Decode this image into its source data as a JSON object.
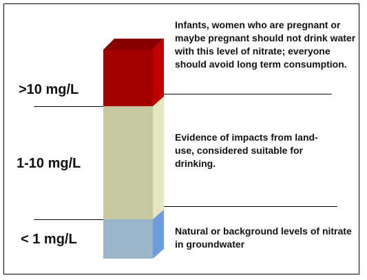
{
  "levels": [
    {
      "label": ">10 mg/L",
      "description": "Infants, women who are pregnant or maybe pregnant should not drink water with this level of nitrate; everyone should avoid long term consumption.",
      "color_front": "#A50000",
      "color_side": "#C00000",
      "color_top": "#8A0000"
    },
    {
      "label": "1-10 mg/L",
      "description": "Evidence of impacts from land-use, considered suitable for drinking.",
      "color_front": "#C8C8A0",
      "color_side": "#E6E6C0"
    },
    {
      "label": "< 1 mg/L",
      "description": "Natural or background levels of nitrate in groundwater",
      "color_front": "#9AB6C8",
      "color_side": "#6F9BE0"
    }
  ]
}
